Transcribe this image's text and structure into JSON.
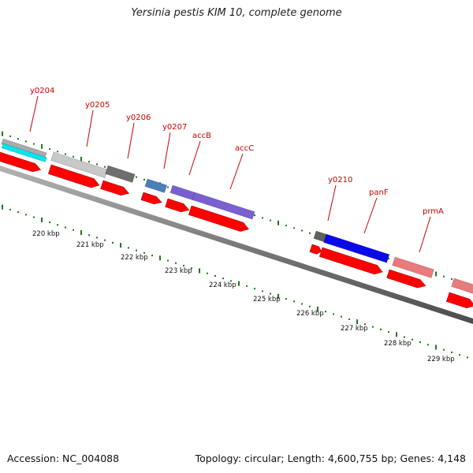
{
  "title": "Yersinia pestis KIM 10, complete genome",
  "accession_text": "Accession: NC_004088",
  "stats_text": "Topology: circular; Length: 4,600,755 bp; Genes: 4,148",
  "colors": {
    "backbone": "#8c8c8c",
    "tick": "#1a7a1a",
    "label": "#cc0000",
    "cds_arrow": "#ff0000"
  },
  "gene_labels": [
    "y0204",
    "y0205",
    "y0206",
    "y0207",
    "accB",
    "accC",
    "y0210",
    "panF",
    "prmA"
  ],
  "kbp_labels": [
    "220 kbp",
    "221 kbp",
    "222 kbp",
    "223 kbp",
    "224 kbp",
    "225 kbp",
    "226 kbp",
    "227 kbp",
    "228 kbp",
    "229 kbp"
  ],
  "feature_colors": {
    "y0204": [
      "#aaaaaa",
      "#00e5ee"
    ],
    "y0205": "#c8c8c8",
    "y0206": "#6e6e6e",
    "y0207": "#4a7fb8",
    "accB": "#7a5fd0",
    "accC": "#7a5fd0",
    "y0210_small": "#606060",
    "panF": "#0a0ae8",
    "prmA": "#e87b7b"
  }
}
